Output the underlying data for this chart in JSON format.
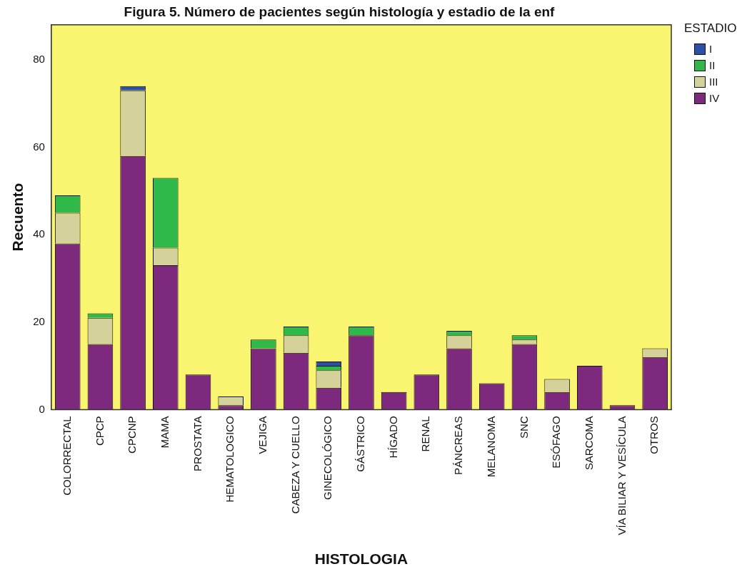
{
  "chart_data": {
    "type": "bar",
    "title": "Figura 5. Número de pacientes según histología y estadio de la enf",
    "xlabel": "HISTOLOGIA",
    "ylabel": "Recuento",
    "legend_title": "ESTADIO",
    "legend": "top right",
    "stacked": true,
    "grid": false,
    "categories": [
      "COLORRECTAL",
      "CPCP",
      "CPCNP",
      "MAMA",
      "PROSTATA",
      "HEMATOLOGICO",
      "VEJIGA",
      "CABEZA Y CUELLO",
      "GINECOLÓGICO",
      "GÁSTRICO",
      "HÍGADO",
      "RENAL",
      "PÁNCREAS",
      "MELANOMA",
      "SNC",
      "ESÓFAGO",
      "SARCOMA",
      "VÍA BILIAR Y VESÍCULA",
      "OTROS"
    ],
    "ylim": [
      0,
      88
    ],
    "yticks": [
      0,
      20,
      40,
      60,
      80
    ],
    "series": [
      {
        "name": "IV",
        "color": "#7d2a7e",
        "values": [
          38,
          15,
          58,
          33,
          8,
          1,
          14,
          13,
          5,
          17,
          4,
          8,
          14,
          6,
          15,
          4,
          10,
          1,
          12
        ]
      },
      {
        "name": "III",
        "color": "#d5d19a",
        "values": [
          7,
          6,
          15,
          4,
          0,
          2,
          0,
          4,
          4,
          0,
          0,
          0,
          3,
          0,
          1,
          3,
          0,
          0,
          2
        ]
      },
      {
        "name": "II",
        "color": "#2fb94a",
        "values": [
          4,
          1,
          0,
          16,
          0,
          0,
          2,
          2,
          1,
          2,
          0,
          0,
          1,
          0,
          1,
          0,
          0,
          0,
          0
        ]
      },
      {
        "name": "I",
        "color": "#2e4fa8",
        "values": [
          0,
          0,
          1,
          0,
          0,
          0,
          0,
          0,
          1,
          0,
          0,
          0,
          0,
          0,
          0,
          0,
          0,
          0,
          0
        ]
      }
    ]
  }
}
